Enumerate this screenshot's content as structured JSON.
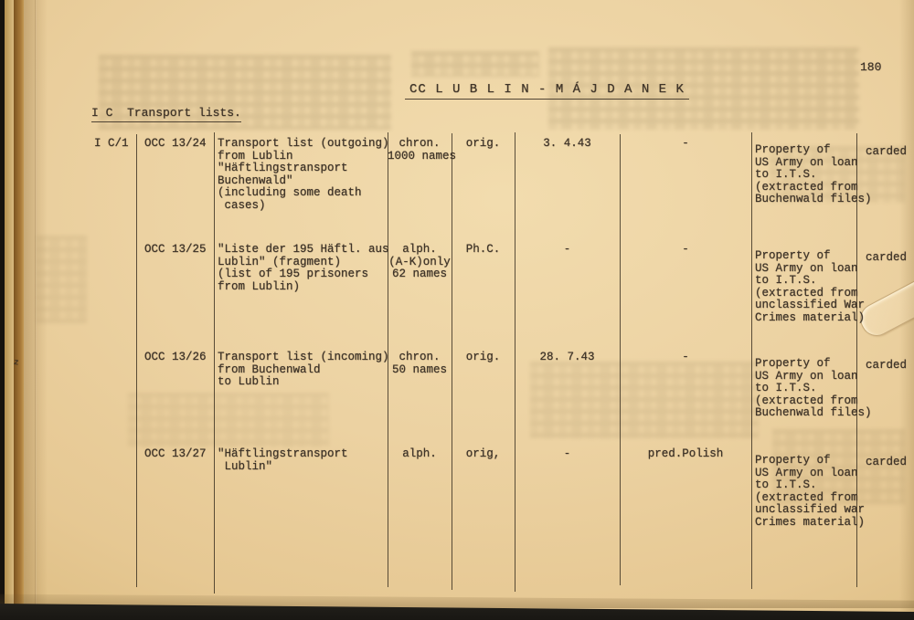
{
  "page": {
    "number": "180",
    "title": "CC L U B L I N - M Á J D A N E K",
    "section_heading": "I C  Transport lists.",
    "ink_mark": "z"
  },
  "colors": {
    "paper": "#ecd2a2",
    "ink": "#3f3428",
    "binding_dark": "#16120e",
    "binding_brown": "#8f6227"
  },
  "table": {
    "rows": [
      {
        "id": "I C/1",
        "ref": "OCC 13/24",
        "description": [
          "Transport list (outgoing)",
          "from Lublin",
          "\"Häftlingstransport",
          "Buchenwald\"",
          "(including some death",
          " cases)"
        ],
        "arrangement": [
          "chron.",
          "1000 names"
        ],
        "form": "orig.",
        "date": "3. 4.43",
        "language": "-",
        "custody": [
          "Property of",
          "US Army on loan",
          "to I.T.S.",
          "(extracted from",
          "Buchenwald files)"
        ],
        "status": "carded"
      },
      {
        "id": "",
        "ref": "OCC 13/25",
        "description": [
          "\"Liste der 195 Häftl. aus",
          "Lublin\" (fragment)",
          "(list of 195 prisoners",
          "from Lublin)"
        ],
        "arrangement": [
          "alph.",
          "(A-K)only",
          "62 names"
        ],
        "form": "Ph.C.",
        "date": "-",
        "language": "-",
        "custody": [
          "Property of",
          "US Army on loan",
          "to I.T.S.",
          "(extracted from",
          "unclassified War",
          "Crimes material)"
        ],
        "status": "carded"
      },
      {
        "id": "",
        "ref": "OCC 13/26",
        "description": [
          "Transport list (incoming)",
          "from Buchenwald",
          "to Lublin"
        ],
        "arrangement": [
          "chron.",
          "50 names"
        ],
        "form": "orig.",
        "date": "28. 7.43",
        "language": "-",
        "custody": [
          "Property of",
          "US Army on loan",
          "to I.T.S.",
          "(extracted from",
          "Buchenwald files)"
        ],
        "status": "carded"
      },
      {
        "id": "",
        "ref": "OCC 13/27",
        "description": [
          "\"Häftlingstransport",
          " Lublin\""
        ],
        "arrangement": [
          "alph."
        ],
        "form": "orig,",
        "date": "-",
        "language": "pred.Polish",
        "custody": [
          "Property of",
          "US Army on loan",
          "to I.T.S.",
          "(extracted from",
          "unclassified war",
          "Crimes material)"
        ],
        "status": "carded"
      }
    ]
  }
}
